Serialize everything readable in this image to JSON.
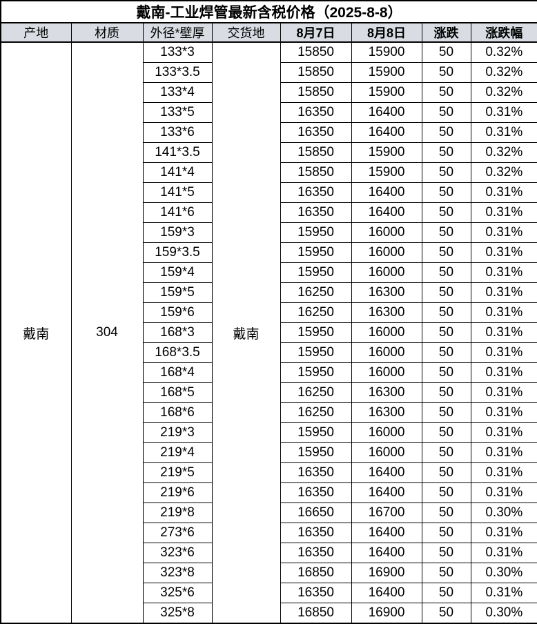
{
  "title": "戴南-工业焊管最新含税价格（2025-8-8）",
  "columns": [
    "产地",
    "材质",
    "外径*壁厚",
    "交货地",
    "8月7日",
    "8月8日",
    "涨跌",
    "涨跌幅"
  ],
  "merged_cells": {
    "origin": "戴南",
    "material": "304",
    "delivery": "戴南"
  },
  "colors": {
    "header_bg": "#d9dde3",
    "border": "#000000",
    "text": "#000000"
  },
  "rows": [
    [
      "133*3",
      "15850",
      "15900",
      "50",
      "0.32%"
    ],
    [
      "133*3.5",
      "15850",
      "15900",
      "50",
      "0.32%"
    ],
    [
      "133*4",
      "15850",
      "15900",
      "50",
      "0.32%"
    ],
    [
      "133*5",
      "16350",
      "16400",
      "50",
      "0.31%"
    ],
    [
      "133*6",
      "16350",
      "16400",
      "50",
      "0.31%"
    ],
    [
      "141*3.5",
      "15850",
      "15900",
      "50",
      "0.32%"
    ],
    [
      "141*4",
      "15850",
      "15900",
      "50",
      "0.32%"
    ],
    [
      "141*5",
      "16350",
      "16400",
      "50",
      "0.31%"
    ],
    [
      "141*6",
      "16350",
      "16400",
      "50",
      "0.31%"
    ],
    [
      "159*3",
      "15950",
      "16000",
      "50",
      "0.31%"
    ],
    [
      "159*3.5",
      "15950",
      "16000",
      "50",
      "0.31%"
    ],
    [
      "159*4",
      "15950",
      "16000",
      "50",
      "0.31%"
    ],
    [
      "159*5",
      "16250",
      "16300",
      "50",
      "0.31%"
    ],
    [
      "159*6",
      "16250",
      "16300",
      "50",
      "0.31%"
    ],
    [
      "168*3",
      "15950",
      "16000",
      "50",
      "0.31%"
    ],
    [
      "168*3.5",
      "15950",
      "16000",
      "50",
      "0.31%"
    ],
    [
      "168*4",
      "15950",
      "16000",
      "50",
      "0.31%"
    ],
    [
      "168*5",
      "16250",
      "16300",
      "50",
      "0.31%"
    ],
    [
      "168*6",
      "16250",
      "16300",
      "50",
      "0.31%"
    ],
    [
      "219*3",
      "15950",
      "16000",
      "50",
      "0.31%"
    ],
    [
      "219*4",
      "15950",
      "16000",
      "50",
      "0.31%"
    ],
    [
      "219*5",
      "16350",
      "16400",
      "50",
      "0.31%"
    ],
    [
      "219*6",
      "16350",
      "16400",
      "50",
      "0.31%"
    ],
    [
      "219*8",
      "16650",
      "16700",
      "50",
      "0.30%"
    ],
    [
      "273*6",
      "16350",
      "16400",
      "50",
      "0.31%"
    ],
    [
      "323*6",
      "16350",
      "16400",
      "50",
      "0.31%"
    ],
    [
      "323*8",
      "16850",
      "16900",
      "50",
      "0.30%"
    ],
    [
      "325*6",
      "16350",
      "16400",
      "50",
      "0.31%"
    ],
    [
      "325*8",
      "16850",
      "16900",
      "50",
      "0.30%"
    ]
  ]
}
